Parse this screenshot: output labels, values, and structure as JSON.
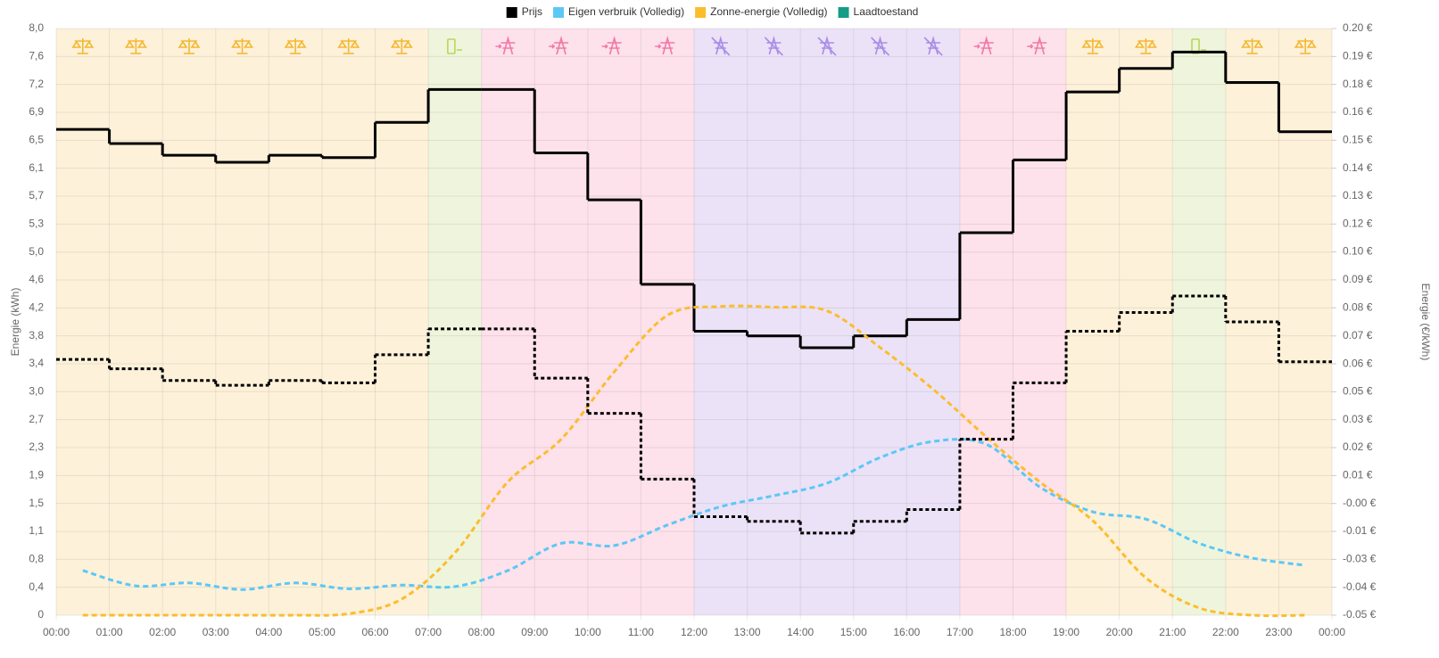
{
  "chart_data": {
    "type": "line",
    "xlim": [
      0,
      24
    ],
    "xticks": [
      {
        "value": 0,
        "label": "00:00"
      },
      {
        "value": 1,
        "label": "01:00"
      },
      {
        "value": 2,
        "label": "02:00"
      },
      {
        "value": 3,
        "label": "03:00"
      },
      {
        "value": 4,
        "label": "04:00"
      },
      {
        "value": 5,
        "label": "05:00"
      },
      {
        "value": 6,
        "label": "06:00"
      },
      {
        "value": 7,
        "label": "07:00"
      },
      {
        "value": 8,
        "label": "08:00"
      },
      {
        "value": 9,
        "label": "09:00"
      },
      {
        "value": 10,
        "label": "10:00"
      },
      {
        "value": 11,
        "label": "11:00"
      },
      {
        "value": 12,
        "label": "12:00"
      },
      {
        "value": 13,
        "label": "13:00"
      },
      {
        "value": 14,
        "label": "14:00"
      },
      {
        "value": 15,
        "label": "15:00"
      },
      {
        "value": 16,
        "label": "16:00"
      },
      {
        "value": 17,
        "label": "17:00"
      },
      {
        "value": 18,
        "label": "18:00"
      },
      {
        "value": 19,
        "label": "19:00"
      },
      {
        "value": 20,
        "label": "20:00"
      },
      {
        "value": 21,
        "label": "21:00"
      },
      {
        "value": 22,
        "label": "22:00"
      },
      {
        "value": 23,
        "label": "23:00"
      },
      {
        "value": 24,
        "label": "00:00"
      }
    ],
    "ylabel": "Energie (kWh)",
    "ylim": [
      0,
      8.0
    ],
    "yticks": [
      {
        "value": 0,
        "label": "0"
      },
      {
        "value": 0.381,
        "label": "0,4"
      },
      {
        "value": 0.762,
        "label": "0,8"
      },
      {
        "value": 1.143,
        "label": "1,1"
      },
      {
        "value": 1.524,
        "label": "1,5"
      },
      {
        "value": 1.905,
        "label": "1,9"
      },
      {
        "value": 2.286,
        "label": "2,3"
      },
      {
        "value": 2.667,
        "label": "2,7"
      },
      {
        "value": 3.048,
        "label": "3,0"
      },
      {
        "value": 3.429,
        "label": "3,4"
      },
      {
        "value": 3.81,
        "label": "3,8"
      },
      {
        "value": 4.19,
        "label": "4,2"
      },
      {
        "value": 4.571,
        "label": "4,6"
      },
      {
        "value": 4.952,
        "label": "5,0"
      },
      {
        "value": 5.333,
        "label": "5,3"
      },
      {
        "value": 5.714,
        "label": "5,7"
      },
      {
        "value": 6.095,
        "label": "6,1"
      },
      {
        "value": 6.476,
        "label": "6,5"
      },
      {
        "value": 6.857,
        "label": "6,9"
      },
      {
        "value": 7.238,
        "label": "7,2"
      },
      {
        "value": 7.619,
        "label": "7,6"
      },
      {
        "value": 8.0,
        "label": "8,0"
      }
    ],
    "y2label": "Energie (€/kWh)",
    "y2lim": [
      -0.05,
      0.2
    ],
    "y2ticks": [
      {
        "value": -0.05,
        "label": "-0.05 €"
      },
      {
        "value": -0.0381,
        "label": "-0.04 €"
      },
      {
        "value": -0.0262,
        "label": "-0.03 €"
      },
      {
        "value": -0.0143,
        "label": "-0.01 €"
      },
      {
        "value": -0.0024,
        "label": "-0.00 €"
      },
      {
        "value": 0.0095,
        "label": "0.01 €"
      },
      {
        "value": 0.0214,
        "label": "0.02 €"
      },
      {
        "value": 0.0333,
        "label": "0.03 €"
      },
      {
        "value": 0.0452,
        "label": "0.05 €"
      },
      {
        "value": 0.0571,
        "label": "0.06 €"
      },
      {
        "value": 0.069,
        "label": "0.07 €"
      },
      {
        "value": 0.081,
        "label": "0.08 €"
      },
      {
        "value": 0.0929,
        "label": "0.09 €"
      },
      {
        "value": 0.1048,
        "label": "0.10 €"
      },
      {
        "value": 0.1167,
        "label": "0.12 €"
      },
      {
        "value": 0.1286,
        "label": "0.13 €"
      },
      {
        "value": 0.1405,
        "label": "0.14 €"
      },
      {
        "value": 0.1524,
        "label": "0.15 €"
      },
      {
        "value": 0.1643,
        "label": "0.16 €"
      },
      {
        "value": 0.1762,
        "label": "0.18 €"
      },
      {
        "value": 0.1881,
        "label": "0.19 €"
      },
      {
        "value": 0.2,
        "label": "0.20 €"
      }
    ],
    "grid": true,
    "legend": "top",
    "band_colors": [
      "#fdf1d9",
      "#fdf1d9",
      "#fdf1d9",
      "#fdf1d9",
      "#fdf1d9",
      "#fdf1d9",
      "#fdf1d9",
      "#eff5dc",
      "#fde1eb",
      "#fde1eb",
      "#fde1eb",
      "#fde1eb",
      "#ebe2f7",
      "#ebe2f7",
      "#ebe2f7",
      "#ebe2f7",
      "#ebe2f7",
      "#fde1eb",
      "#fde1eb",
      "#fdf1d9",
      "#fdf1d9",
      "#eff5dc",
      "#fdf1d9",
      "#fdf1d9"
    ],
    "series": [
      {
        "name": "Prijs",
        "color": "#000000",
        "axis": "y2",
        "style": "step",
        "x": [
          0,
          1,
          2,
          3,
          4,
          5,
          6,
          7,
          8,
          9,
          10,
          11,
          12,
          13,
          14,
          15,
          16,
          17,
          18,
          19,
          20,
          21,
          22,
          23
        ],
        "values": [
          0.157,
          0.151,
          0.146,
          0.143,
          0.146,
          0.145,
          0.16,
          0.174,
          0.174,
          0.147,
          0.127,
          0.091,
          0.071,
          0.069,
          0.064,
          0.069,
          0.076,
          0.113,
          0.144,
          0.173,
          0.183,
          0.19,
          0.177,
          0.156
        ]
      },
      {
        "name": "Eigen verbruik (Volledig)",
        "color": "#5bc8f5",
        "style": "dashed",
        "x": [
          0.5,
          1.5,
          2.5,
          3.5,
          4.5,
          5.5,
          6.5,
          7.5,
          8.5,
          9.5,
          10.5,
          11.5,
          12.5,
          13.5,
          14.5,
          15.5,
          16.5,
          17.5,
          18.5,
          19.5,
          20.5,
          21.5,
          22.5,
          23.5
        ],
        "values": [
          0.61,
          0.4,
          0.44,
          0.35,
          0.44,
          0.36,
          0.41,
          0.39,
          0.61,
          0.98,
          0.95,
          1.23,
          1.48,
          1.63,
          1.8,
          2.15,
          2.37,
          2.33,
          1.75,
          1.41,
          1.31,
          0.98,
          0.78,
          0.68
        ]
      },
      {
        "name": "Zonne-energie (Volledig)",
        "color": "#fbbd2c",
        "style": "dashed",
        "x": [
          0.5,
          1.5,
          2.5,
          3.5,
          4.5,
          5.5,
          6.5,
          7.5,
          8.5,
          9.5,
          10.5,
          11.5,
          12.5,
          13.5,
          14.5,
          15.5,
          16.5,
          17.5,
          18.5,
          19.5,
          20.5,
          21.5,
          22.5,
          23.5
        ],
        "values": [
          0,
          0,
          0,
          0,
          0,
          0.02,
          0.22,
          0.85,
          1.82,
          2.4,
          3.32,
          4.09,
          4.21,
          4.2,
          4.15,
          3.65,
          3.08,
          2.43,
          1.82,
          1.29,
          0.51,
          0.1,
          0,
          0
        ]
      },
      {
        "name": "Laadtoestand",
        "color": "#159c86"
      },
      {
        "color": "#000000",
        "axis": "y2",
        "style": "dotted-step",
        "x": [
          0,
          1,
          2,
          3,
          4,
          5,
          6,
          7,
          8,
          9,
          10,
          11,
          12,
          13,
          14,
          15,
          16,
          17,
          18,
          19,
          20,
          21,
          22,
          23
        ],
        "values": [
          0.059,
          0.055,
          0.05,
          0.048,
          0.05,
          0.049,
          0.061,
          0.072,
          0.072,
          0.051,
          0.036,
          0.008,
          -0.008,
          -0.01,
          -0.015,
          -0.01,
          -0.005,
          0.025,
          0.049,
          0.071,
          0.079,
          0.086,
          0.075,
          0.058
        ]
      }
    ]
  }
}
